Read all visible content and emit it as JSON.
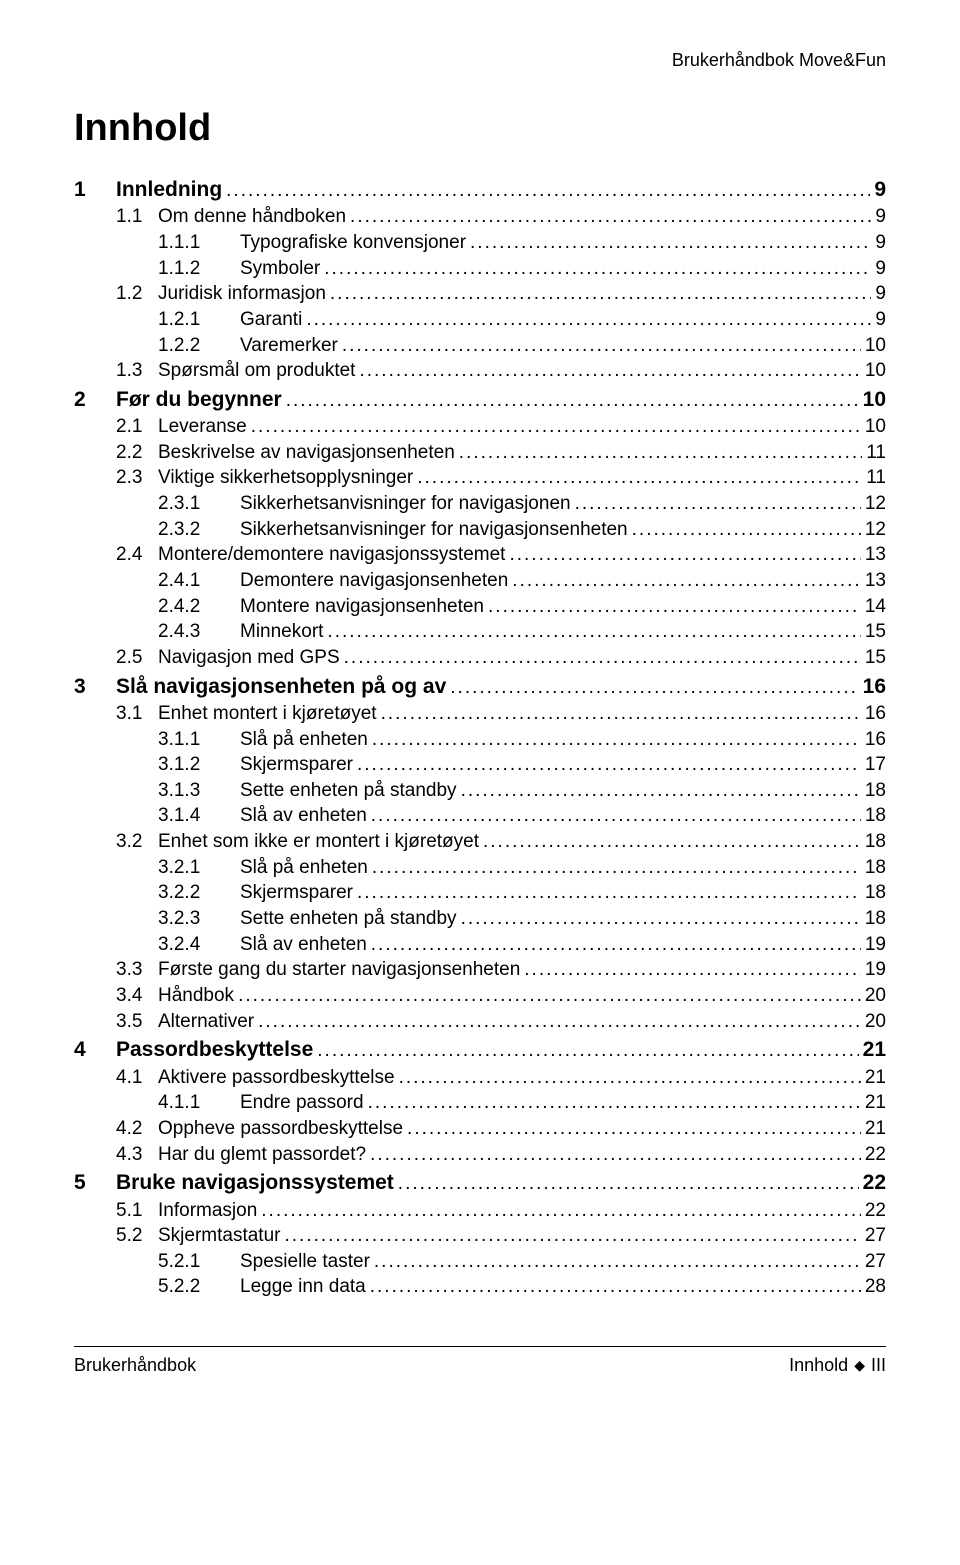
{
  "header": {
    "right": "Brukerhåndbok Move&Fun"
  },
  "title": "Innhold",
  "toc": [
    {
      "level": 0,
      "num": "1",
      "text": "Innledning",
      "page": "9"
    },
    {
      "level": 1,
      "num": "1.1",
      "text": "Om denne håndboken",
      "page": "9"
    },
    {
      "level": 2,
      "num": "1.1.1",
      "text": "Typografiske konvensjoner",
      "page": "9"
    },
    {
      "level": 2,
      "num": "1.1.2",
      "text": "Symboler",
      "page": "9"
    },
    {
      "level": 1,
      "num": "1.2",
      "text": "Juridisk informasjon",
      "page": "9"
    },
    {
      "level": 2,
      "num": "1.2.1",
      "text": "Garanti",
      "page": "9"
    },
    {
      "level": 2,
      "num": "1.2.2",
      "text": "Varemerker",
      "page": "10"
    },
    {
      "level": 1,
      "num": "1.3",
      "text": "Spørsmål om produktet",
      "page": "10"
    },
    {
      "level": 0,
      "num": "2",
      "text": "Før du begynner",
      "page": "10"
    },
    {
      "level": 1,
      "num": "2.1",
      "text": "Leveranse",
      "page": "10"
    },
    {
      "level": 1,
      "num": "2.2",
      "text": "Beskrivelse av navigasjonsenheten",
      "page": "11"
    },
    {
      "level": 1,
      "num": "2.3",
      "text": "Viktige sikkerhetsopplysninger",
      "page": "11"
    },
    {
      "level": 2,
      "num": "2.3.1",
      "text": "Sikkerhetsanvisninger for navigasjonen",
      "page": "12"
    },
    {
      "level": 2,
      "num": "2.3.2",
      "text": "Sikkerhetsanvisninger for navigasjonsenheten",
      "page": "12"
    },
    {
      "level": 1,
      "num": "2.4",
      "text": "Montere/demontere navigasjonssystemet",
      "page": "13"
    },
    {
      "level": 2,
      "num": "2.4.1",
      "text": "Demontere navigasjonsenheten",
      "page": "13"
    },
    {
      "level": 2,
      "num": "2.4.2",
      "text": "Montere navigasjonsenheten",
      "page": "14"
    },
    {
      "level": 2,
      "num": "2.4.3",
      "text": "Minnekort",
      "page": "15"
    },
    {
      "level": 1,
      "num": "2.5",
      "text": "Navigasjon med GPS",
      "page": "15"
    },
    {
      "level": 0,
      "num": "3",
      "text": "Slå navigasjonsenheten på og av",
      "page": "16"
    },
    {
      "level": 1,
      "num": "3.1",
      "text": "Enhet montert i kjøretøyet",
      "page": "16"
    },
    {
      "level": 2,
      "num": "3.1.1",
      "text": "Slå på enheten",
      "page": "16"
    },
    {
      "level": 2,
      "num": "3.1.2",
      "text": "Skjermsparer",
      "page": "17"
    },
    {
      "level": 2,
      "num": "3.1.3",
      "text": "Sette enheten på standby",
      "page": "18"
    },
    {
      "level": 2,
      "num": "3.1.4",
      "text": "Slå av enheten",
      "page": "18"
    },
    {
      "level": 1,
      "num": "3.2",
      "text": "Enhet som ikke er montert i kjøretøyet",
      "page": "18"
    },
    {
      "level": 2,
      "num": "3.2.1",
      "text": "Slå på enheten",
      "page": "18"
    },
    {
      "level": 2,
      "num": "3.2.2",
      "text": "Skjermsparer",
      "page": "18"
    },
    {
      "level": 2,
      "num": "3.2.3",
      "text": "Sette enheten på standby",
      "page": "18"
    },
    {
      "level": 2,
      "num": "3.2.4",
      "text": "Slå av enheten",
      "page": "19"
    },
    {
      "level": 1,
      "num": "3.3",
      "text": "Første gang du starter navigasjonsenheten",
      "page": "19"
    },
    {
      "level": 1,
      "num": "3.4",
      "text": "Håndbok",
      "page": "20"
    },
    {
      "level": 1,
      "num": "3.5",
      "text": "Alternativer",
      "page": "20"
    },
    {
      "level": 0,
      "num": "4",
      "text": "Passordbeskyttelse",
      "page": "21"
    },
    {
      "level": 1,
      "num": "4.1",
      "text": "Aktivere passordbeskyttelse",
      "page": "21"
    },
    {
      "level": 2,
      "num": "4.1.1",
      "text": "Endre passord",
      "page": "21"
    },
    {
      "level": 1,
      "num": "4.2",
      "text": "Oppheve passordbeskyttelse",
      "page": "21"
    },
    {
      "level": 1,
      "num": "4.3",
      "text": "Har du glemt passordet?",
      "page": "22"
    },
    {
      "level": 0,
      "num": "5",
      "text": "Bruke navigasjonssystemet",
      "page": "22"
    },
    {
      "level": 1,
      "num": "5.1",
      "text": "Informasjon",
      "page": "22"
    },
    {
      "level": 1,
      "num": "5.2",
      "text": "Skjermtastatur",
      "page": "27"
    },
    {
      "level": 2,
      "num": "5.2.1",
      "text": "Spesielle taster",
      "page": "27"
    },
    {
      "level": 2,
      "num": "5.2.2",
      "text": "Legge inn data",
      "page": "28"
    }
  ],
  "footer": {
    "left": "Brukerhåndbok",
    "right_label": "Innhold",
    "right_page": "III"
  }
}
